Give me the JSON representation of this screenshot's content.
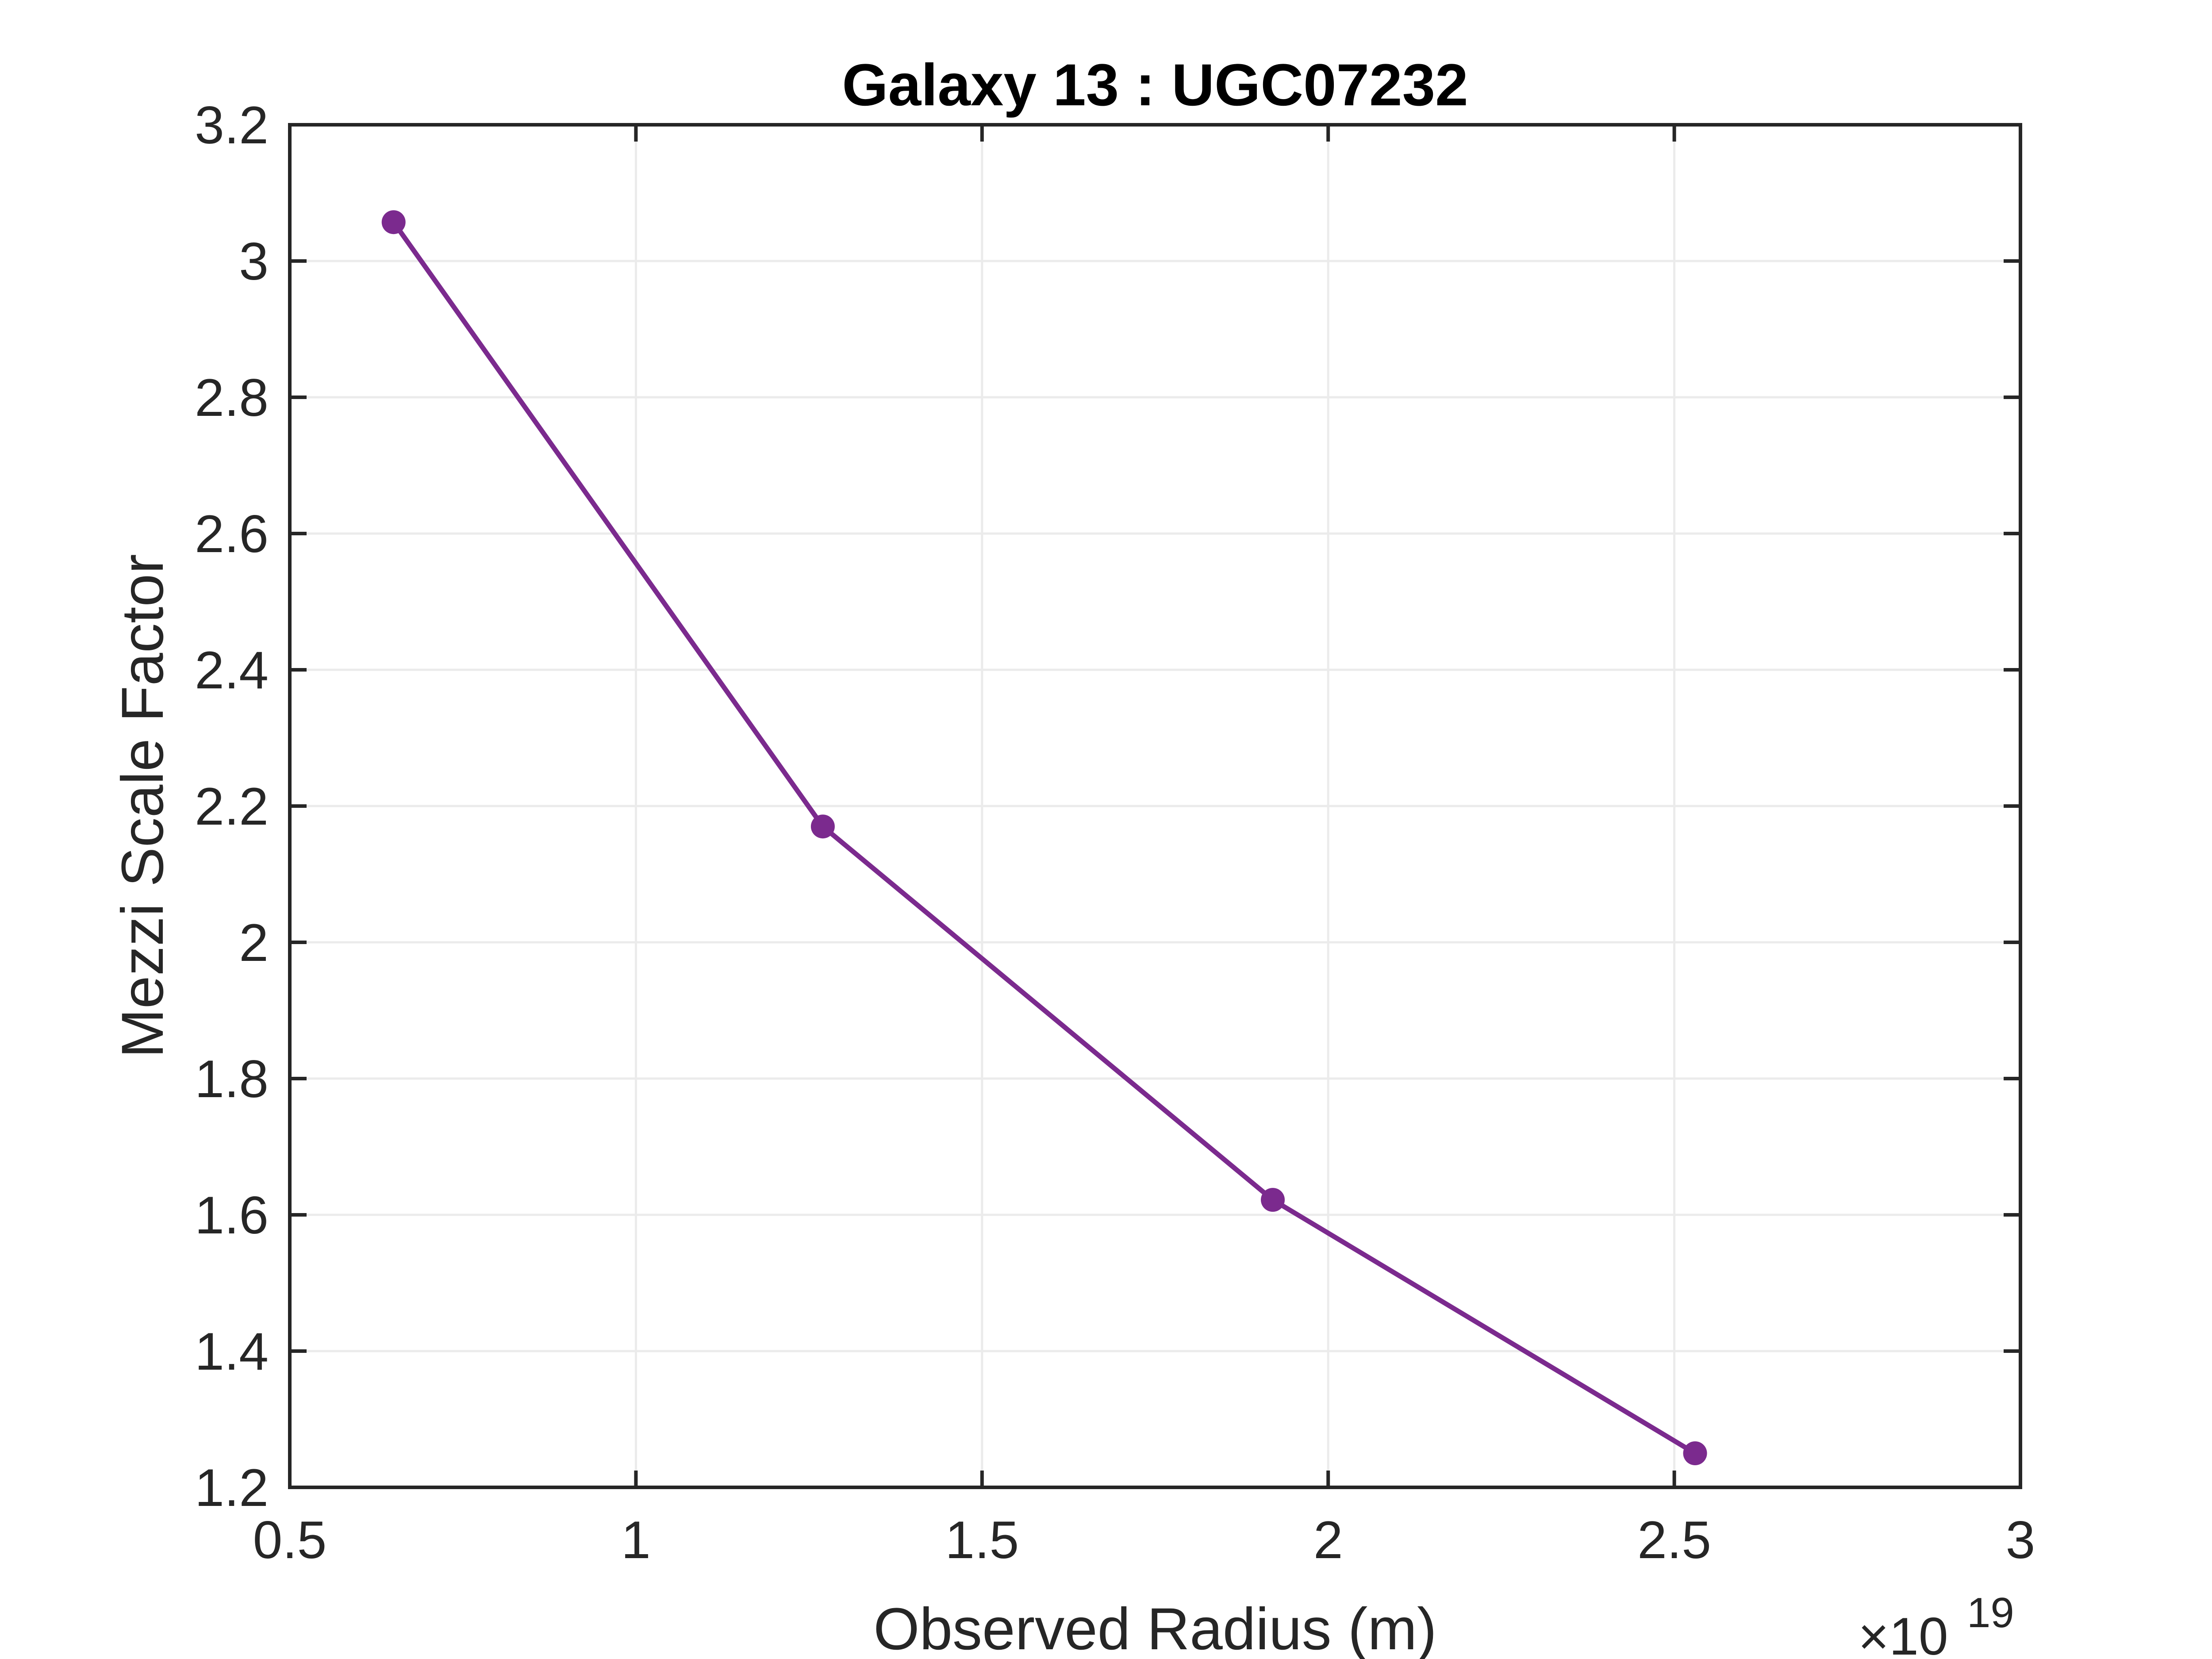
{
  "chart_data": {
    "type": "line",
    "title": "Galaxy 13 : UGC07232",
    "xlabel": "Observed Radius (m)",
    "ylabel": "Mezzi Scale Factor",
    "x_exponent_label": "×10",
    "x_exponent_power": "19",
    "xlim": [
      0.5,
      3
    ],
    "ylim": [
      1.2,
      3.2
    ],
    "xticks": [
      0.5,
      1,
      1.5,
      2,
      2.5,
      3
    ],
    "xtick_labels": [
      "0.5",
      "1",
      "1.5",
      "2",
      "2.5",
      "3"
    ],
    "yticks": [
      1.2,
      1.4,
      1.6,
      1.8,
      2,
      2.2,
      2.4,
      2.6,
      2.8,
      3,
      3.2
    ],
    "ytick_labels": [
      "1.2",
      "1.4",
      "1.6",
      "1.8",
      "2",
      "2.2",
      "2.4",
      "2.6",
      "2.8",
      "3",
      "3.2"
    ],
    "grid": true,
    "series": [
      {
        "color": "#7b2a8e",
        "x": [
          0.65,
          1.27,
          1.92,
          2.53
        ],
        "y": [
          3.057,
          2.17,
          1.622,
          1.25
        ]
      }
    ]
  }
}
